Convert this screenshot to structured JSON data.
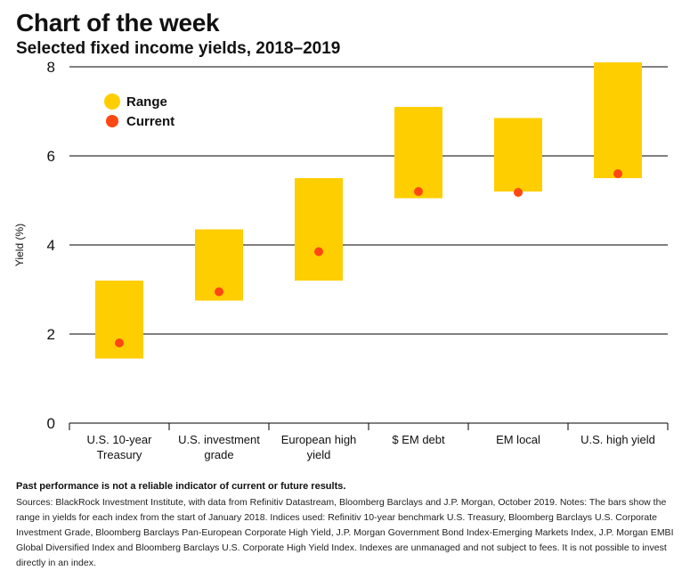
{
  "header": {
    "title": "Chart of the week",
    "subtitle": "Selected fixed income yields, 2018–2019"
  },
  "chart_data": {
    "type": "bar",
    "ylabel": "Yield (%)",
    "xlabel": "",
    "ylim": [
      0,
      8
    ],
    "yticks": [
      "0",
      "2",
      "4",
      "6",
      "8"
    ],
    "grid": true,
    "legend_position": "top-left",
    "colors": {
      "range": "#FFCE00",
      "current": "#FF4713",
      "grid": "#000000"
    },
    "categories": [
      [
        "U.S. 10-year",
        "Treasury"
      ],
      [
        "U.S. investment",
        "grade"
      ],
      [
        "European high",
        "yield"
      ],
      [
        "$ EM debt"
      ],
      [
        "EM local"
      ],
      [
        "U.S. high yield"
      ]
    ],
    "series": [
      {
        "name": "Range",
        "low": [
          1.45,
          2.75,
          3.2,
          5.05,
          5.2,
          5.5
        ],
        "high": [
          3.2,
          4.35,
          5.5,
          7.1,
          6.85,
          8.1
        ]
      },
      {
        "name": "Current",
        "values": [
          1.8,
          2.95,
          3.85,
          5.2,
          5.18,
          5.6
        ]
      }
    ]
  },
  "footer": {
    "disclaimer": "Past performance is not a reliable indicator of current or future results.",
    "sources": "Sources: BlackRock Investment Institute, with data from Refinitiv Datastream, Bloomberg Barclays and J.P. Morgan, October 2019. Notes: The bars show the range in yields for each index from the start of January 2018. Indices used: Refinitiv 10-year benchmark U.S. Treasury, Bloomberg Barclays U.S. Corporate Investment Grade, Bloomberg Barclays Pan-European Corporate High Yield, J.P. Morgan Government Bond Index-Emerging Markets Index, J.P. Morgan EMBI Global Diversified Index and Bloomberg Barclays U.S. Corporate High Yield Index. Indexes are unmanaged and not subject to fees. It is not possible to invest directly in an index."
  }
}
